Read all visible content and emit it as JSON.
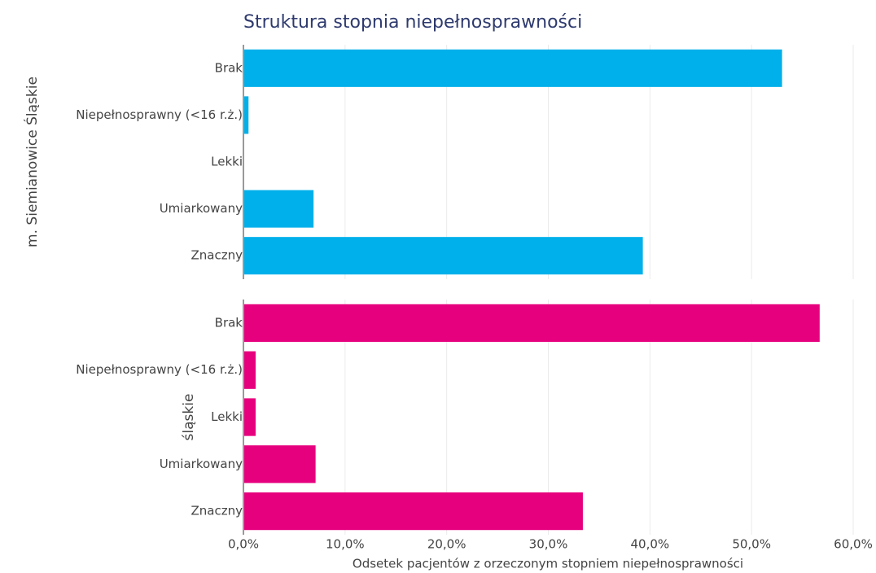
{
  "chart_data": {
    "type": "bar",
    "title": "Struktura stopnia niepełnosprawności",
    "xlabel": "Odsetek pacjentów z orzeczonym stopniem niepełnosprawności",
    "categories": [
      "Brak",
      "Niepełnosprawny (<16 r.ż.)",
      "Lekki",
      "Umiarkowany",
      "Znaczny"
    ],
    "series": [
      {
        "name": "m. Siemianowice Śląskie",
        "color": "#00b0ea",
        "values": [
          53.0,
          0.5,
          0,
          6.9,
          39.3
        ]
      },
      {
        "name": "śląskie",
        "color": "#e6007e",
        "values": [
          56.7,
          1.2,
          1.2,
          7.1,
          33.4
        ]
      }
    ],
    "xlim": [
      0,
      60
    ],
    "xticks": [
      {
        "value": 0,
        "label": "0,0%"
      },
      {
        "value": 10,
        "label": "10,0%"
      },
      {
        "value": 20,
        "label": "20,0%"
      },
      {
        "value": 30,
        "label": "30,0%"
      },
      {
        "value": 40,
        "label": "40,0%"
      },
      {
        "value": 50,
        "label": "50,0%"
      },
      {
        "value": 60,
        "label": "60,0%"
      }
    ],
    "grid": true
  }
}
